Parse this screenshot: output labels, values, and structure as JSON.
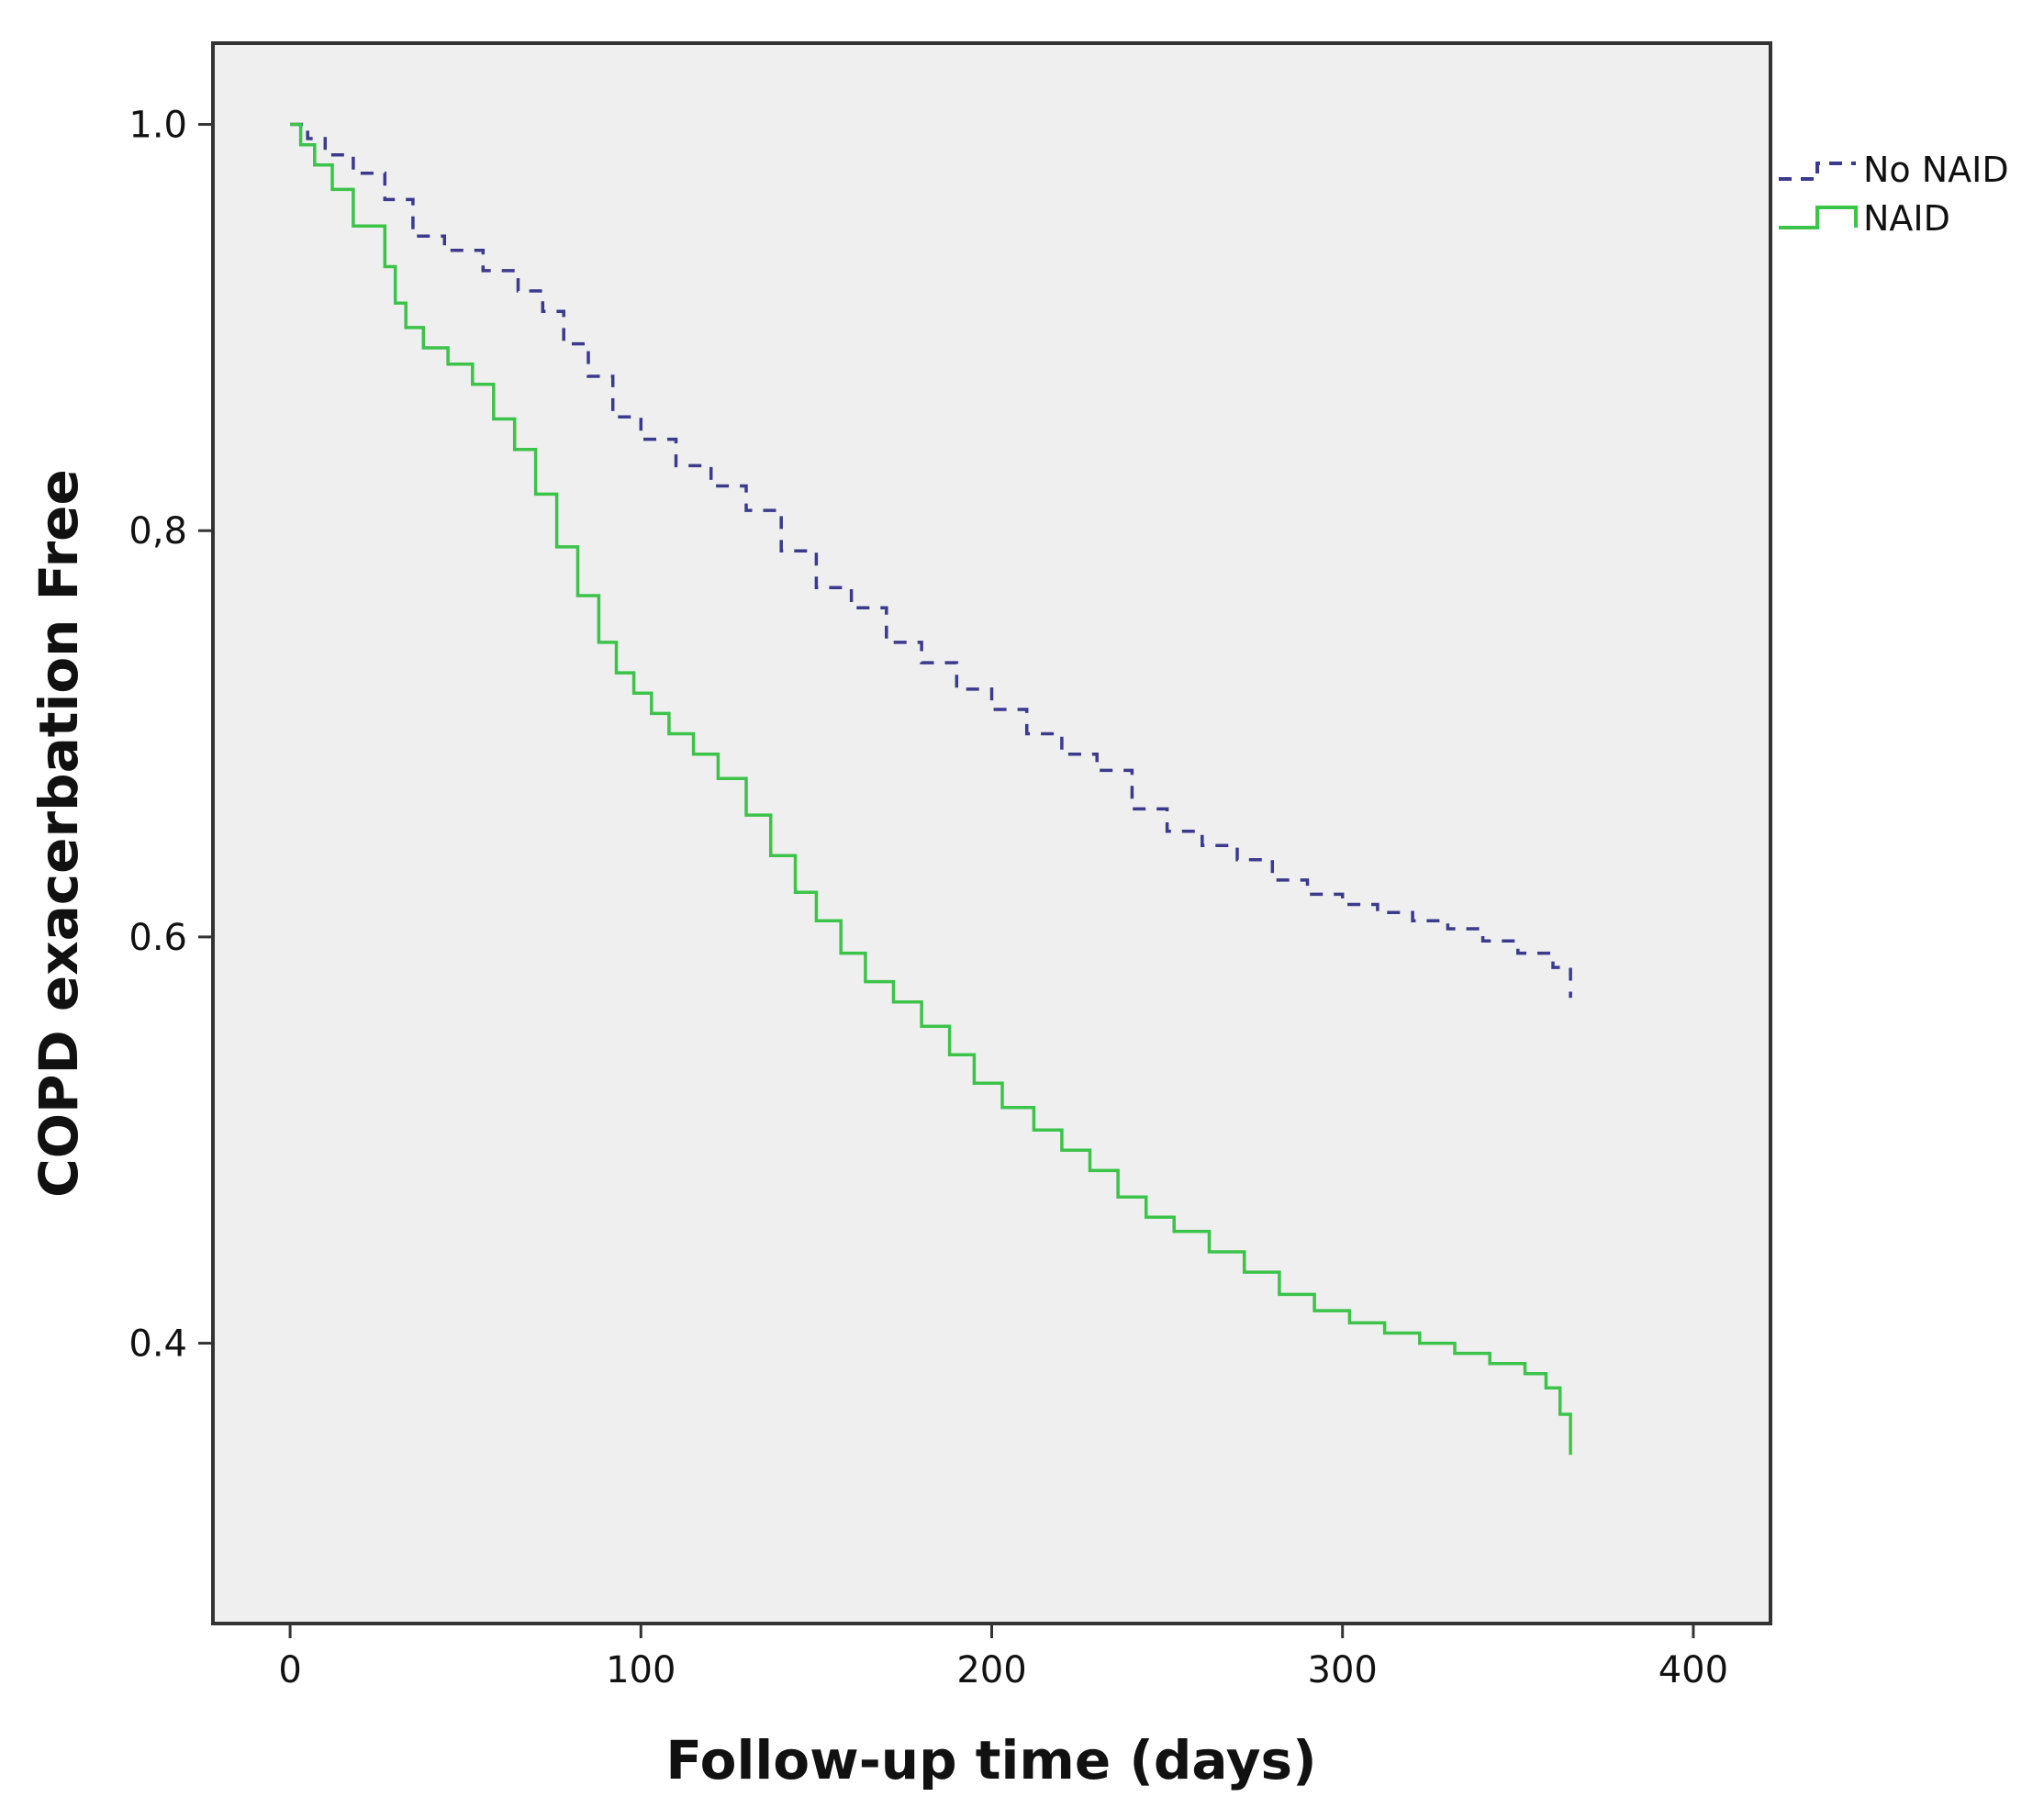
{
  "chart_data": {
    "type": "line",
    "subtype": "kaplan-meier-step",
    "title": "",
    "xlabel": "Follow-up time (days)",
    "ylabel": "COPD exacerbation Free",
    "xlim": [
      -22,
      422
    ],
    "ylim": [
      0.262,
      1.04
    ],
    "x_ticks": [
      0,
      100,
      200,
      300,
      400
    ],
    "x_tick_labels": [
      "0",
      "100",
      "200",
      "300",
      "400"
    ],
    "y_ticks": [
      0.4,
      0.6,
      0.8,
      1.0
    ],
    "y_tick_labels": [
      "0.4",
      "0.6",
      "0,8",
      "1.0"
    ],
    "grid": false,
    "legend_position": "right-outside-top",
    "plot_background": "#efefef",
    "series": [
      {
        "name": "No NAID",
        "color": "#3b3a8c",
        "line_style": "dashed",
        "x": [
          0,
          5,
          10,
          18,
          27,
          35,
          44,
          55,
          65,
          72,
          78,
          85,
          92,
          100,
          110,
          120,
          130,
          140,
          150,
          160,
          170,
          180,
          190,
          200,
          210,
          220,
          230,
          240,
          250,
          260,
          270,
          280,
          290,
          300,
          310,
          320,
          330,
          340,
          350,
          360,
          365
        ],
        "y": [
          1.0,
          0.993,
          0.985,
          0.976,
          0.963,
          0.945,
          0.938,
          0.928,
          0.918,
          0.908,
          0.892,
          0.876,
          0.856,
          0.845,
          0.832,
          0.822,
          0.81,
          0.79,
          0.772,
          0.762,
          0.745,
          0.735,
          0.722,
          0.712,
          0.7,
          0.69,
          0.682,
          0.663,
          0.652,
          0.645,
          0.638,
          0.628,
          0.621,
          0.616,
          0.612,
          0.608,
          0.604,
          0.598,
          0.592,
          0.585,
          0.57
        ]
      },
      {
        "name": "NAID",
        "color": "#3cc34a",
        "line_style": "solid",
        "x": [
          0,
          3,
          7,
          12,
          18,
          27,
          30,
          33,
          38,
          45,
          52,
          58,
          64,
          70,
          76,
          82,
          88,
          93,
          98,
          103,
          108,
          115,
          122,
          130,
          137,
          144,
          150,
          157,
          164,
          172,
          180,
          188,
          195,
          203,
          212,
          220,
          228,
          236,
          244,
          252,
          262,
          272,
          282,
          292,
          302,
          312,
          322,
          332,
          342,
          352,
          358,
          362,
          365
        ],
        "y": [
          1.0,
          0.99,
          0.98,
          0.968,
          0.95,
          0.93,
          0.912,
          0.9,
          0.89,
          0.882,
          0.872,
          0.855,
          0.84,
          0.818,
          0.792,
          0.768,
          0.745,
          0.73,
          0.72,
          0.71,
          0.7,
          0.69,
          0.678,
          0.66,
          0.64,
          0.622,
          0.608,
          0.592,
          0.578,
          0.568,
          0.556,
          0.542,
          0.528,
          0.516,
          0.505,
          0.495,
          0.485,
          0.472,
          0.462,
          0.455,
          0.445,
          0.435,
          0.424,
          0.416,
          0.41,
          0.405,
          0.4,
          0.395,
          0.39,
          0.385,
          0.378,
          0.365,
          0.345
        ]
      }
    ]
  }
}
